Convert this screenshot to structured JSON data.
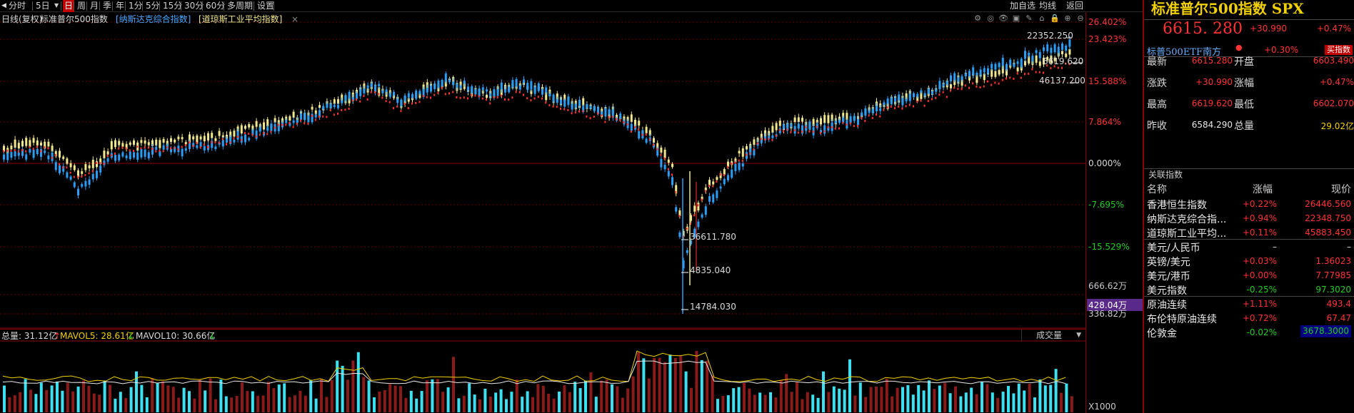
{
  "toolbar": {
    "items": [
      {
        "label": "分时",
        "active": false
      },
      {
        "label": "5日",
        "active": false
      },
      {
        "label": "日",
        "active": true
      },
      {
        "label": "周",
        "active": false
      },
      {
        "label": "月",
        "active": false
      },
      {
        "label": "季",
        "active": false
      },
      {
        "label": "年",
        "active": false
      },
      {
        "label": "1分",
        "active": false
      },
      {
        "label": "5分",
        "active": false
      },
      {
        "label": "15分",
        "active": false
      },
      {
        "label": "30分",
        "active": false
      },
      {
        "label": "60分",
        "active": false
      },
      {
        "label": "多周期",
        "active": false
      },
      {
        "label": "设置",
        "active": false
      }
    ],
    "right_items": [
      "加自选",
      "均线",
      "返回"
    ]
  },
  "infoline": {
    "mode": "日线(复权)",
    "main_name": "标准普尔500指数",
    "overlay1": "[纳斯达克综合指数]",
    "overlay2": "[道琼斯工业平均指数]",
    "close_mark": "×"
  },
  "y_axis": {
    "labels": [
      {
        "text": "26.402%",
        "color": "#ff3333"
      },
      {
        "text": "23.423%",
        "color": "#ff3333"
      },
      {
        "text": "15.588%",
        "color": "#ff3333"
      },
      {
        "text": "7.864%",
        "color": "#ff3333"
      },
      {
        "text": "0.000%",
        "color": "#d8d8d8"
      },
      {
        "text": "-7.695%",
        "color": "#22cc22"
      },
      {
        "text": "-15.529%",
        "color": "#22cc22"
      }
    ],
    "vol_labels": [
      "666.62万",
      "428.04万",
      "336.82万",
      "X1000"
    ]
  },
  "annotations": {
    "high1": "22352.250",
    "high2": "6619.620",
    "high3": "46137.200",
    "low1": "36611.780",
    "low2": "4835.040",
    "low3": "14784.030"
  },
  "volume": {
    "total_label": "总量: 31.12亿",
    "total_arrow": "↑",
    "mavol5_label": "MAVOL5: 28.61亿",
    "mavol5_arrow": "↓",
    "mavol10_label": "MAVOL10: 30.66亿",
    "mavol10_arrow": "↓",
    "dropdown": "成交量"
  },
  "panel": {
    "title": "标准普尔500指数 SPX",
    "price": "6615. 280",
    "change": "+30.990",
    "pct": "+0.47%",
    "etf_name": "标普500ETF南方",
    "etf_dot": "●",
    "etf_pct": "+0.30%",
    "etf_buy": "买指数",
    "quotes": [
      {
        "l1": "最新",
        "v1": "6615.280",
        "c1": "up",
        "l2": "开盘",
        "v2": "6603.490",
        "c2": "up"
      },
      {
        "l1": "涨跌",
        "v1": "+30.990",
        "c1": "up",
        "l2": "涨幅",
        "v2": "+0.47%",
        "c2": "up"
      },
      {
        "l1": "最高",
        "v1": "6619.620",
        "c1": "up",
        "l2": "最低",
        "v2": "6602.070",
        "c2": "up"
      },
      {
        "l1": "昨收",
        "v1": "6584.290",
        "c1": "flat",
        "l2": "总量",
        "v2": "29.02亿",
        "c2": "yellow"
      }
    ],
    "related_header": "关联指数",
    "related_cols": {
      "name": "名称",
      "chg": "涨幅",
      "val": "现价"
    },
    "related": [
      {
        "name": "香港恒生指数",
        "chg": "+0.22%",
        "val": "26446.560",
        "dir": "up"
      },
      {
        "name": "纳斯达克综合指...",
        "chg": "+0.94%",
        "val": "22348.750",
        "dir": "up"
      },
      {
        "name": "道琼斯工业平均...",
        "chg": "+0.11%",
        "val": "45883.450",
        "dir": "up"
      },
      {
        "name": "美元/人民币",
        "chg": "–",
        "val": "–",
        "dir": "flat"
      },
      {
        "name": "英镑/美元",
        "chg": "+0.03%",
        "val": "1.36023",
        "dir": "up"
      },
      {
        "name": "美元/港币",
        "chg": "+0.00%",
        "val": "7.77985",
        "dir": "up"
      },
      {
        "name": "美元指数",
        "chg": "-0.25%",
        "val": "97.3020",
        "dir": "down"
      },
      {
        "name": "原油连续",
        "chg": "+1.11%",
        "val": "493.4",
        "dir": "up"
      },
      {
        "name": "布伦特原油连续",
        "chg": "+0.72%",
        "val": "67.47",
        "dir": "up"
      },
      {
        "name": "伦敦金",
        "chg": "-0.02%",
        "val": "3678.3000",
        "dir": "down"
      }
    ]
  }
}
